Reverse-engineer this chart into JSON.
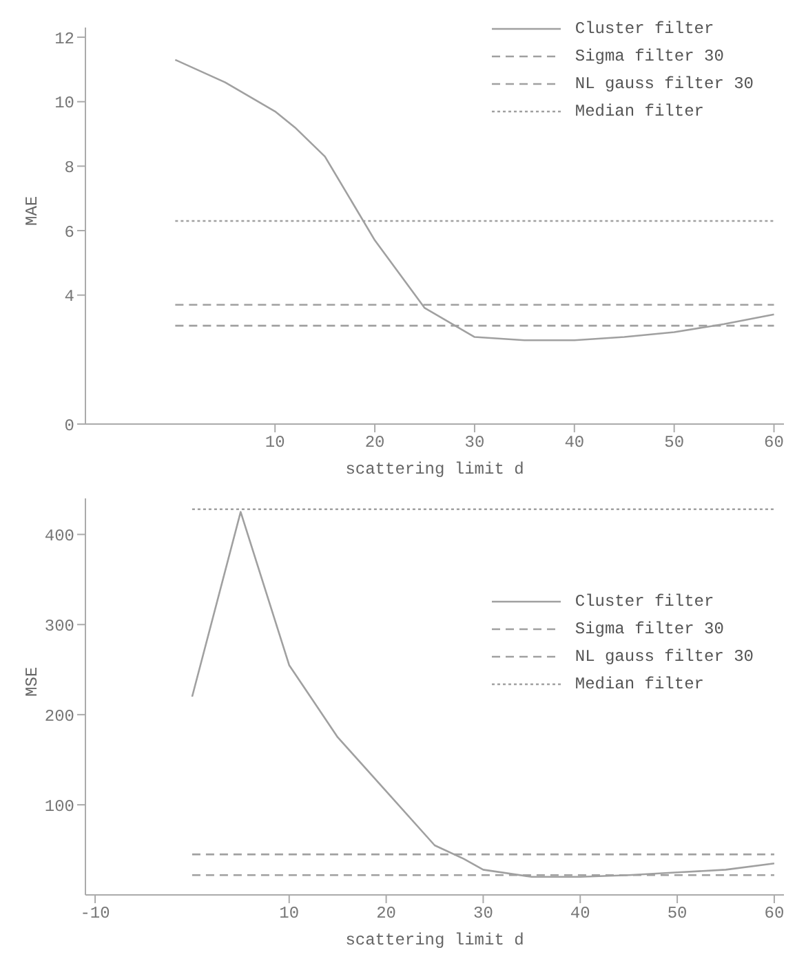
{
  "chart_data": [
    {
      "type": "line",
      "xlabel": "scattering limit d",
      "ylabel": "MAE",
      "xlim": [
        -9,
        61
      ],
      "xticks": [
        10,
        20,
        30,
        40,
        50,
        60
      ],
      "ylim": [
        0,
        12.3
      ],
      "yticks": [
        0,
        4,
        6,
        8,
        10,
        12
      ],
      "grid": false,
      "legend": "top right",
      "marker": "none",
      "series": [
        {
          "name": "Cluster filter",
          "color": "#a0a0a0",
          "line_style": "solid",
          "x": [
            0,
            5,
            10,
            12,
            15,
            20,
            25,
            30,
            35,
            40,
            45,
            50,
            55,
            60
          ],
          "values": [
            11.3,
            10.6,
            9.7,
            9.2,
            8.3,
            5.7,
            3.6,
            2.7,
            2.6,
            2.6,
            2.7,
            2.85,
            3.1,
            3.4
          ]
        },
        {
          "name": "Sigma filter 30",
          "color": "#a0a0a0",
          "line_style": "dashed",
          "x": [
            0,
            60
          ],
          "values": [
            3.7,
            3.7
          ]
        },
        {
          "name": "NL gauss filter 30",
          "color": "#a0a0a0",
          "line_style": "dashed",
          "x": [
            0,
            60
          ],
          "values": [
            3.05,
            3.05
          ]
        },
        {
          "name": "Median filter",
          "color": "#a0a0a0",
          "line_style": "dotted",
          "x": [
            0,
            60
          ],
          "values": [
            6.3,
            6.3
          ]
        }
      ]
    },
    {
      "type": "line",
      "xlabel": "scattering limit d",
      "ylabel": "MSE",
      "xlim": [
        -11,
        61
      ],
      "xticks": [
        -10,
        10,
        20,
        30,
        40,
        50,
        60
      ],
      "ylim": [
        0,
        440
      ],
      "yticks": [
        100,
        200,
        300,
        400
      ],
      "grid": false,
      "legend": "right",
      "marker": "none",
      "series": [
        {
          "name": "Cluster filter",
          "color": "#a0a0a0",
          "line_style": "solid",
          "x": [
            0,
            5,
            10,
            15,
            20,
            25,
            28,
            30,
            35,
            40,
            45,
            50,
            55,
            60
          ],
          "values": [
            220,
            425,
            255,
            175,
            115,
            55,
            40,
            28,
            20,
            20,
            22,
            25,
            28,
            35
          ]
        },
        {
          "name": "Sigma filter 30",
          "color": "#a0a0a0",
          "line_style": "dashed",
          "x": [
            0,
            60
          ],
          "values": [
            45,
            45
          ]
        },
        {
          "name": "NL gauss filter 30",
          "color": "#a0a0a0",
          "line_style": "dashed",
          "x": [
            0,
            60
          ],
          "values": [
            22,
            22
          ]
        },
        {
          "name": "Median filter",
          "color": "#a0a0a0",
          "line_style": "dotted",
          "x": [
            0,
            60
          ],
          "values": [
            428,
            428
          ]
        }
      ]
    }
  ]
}
